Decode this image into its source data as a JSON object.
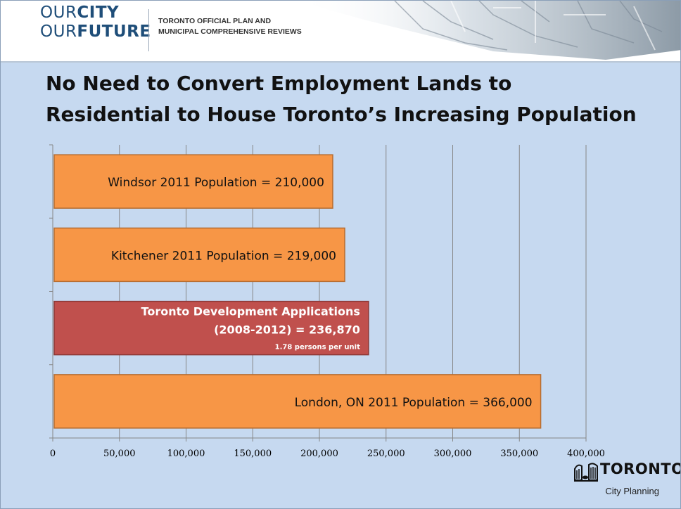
{
  "header": {
    "brand_line1_light": "OUR",
    "brand_line1_bold": "CITY",
    "brand_line2_light": "OUR",
    "brand_line2_bold": "FUTURE",
    "subtitle_line1": "TORONTO OFFICIAL PLAN AND",
    "subtitle_line2": "MUNICIPAL COMPREHENSIVE REVIEWS"
  },
  "slide": {
    "title_line1": "No Need to Convert Employment Lands to",
    "title_line2": "Residential to House Toronto’s Increasing Population"
  },
  "logo": {
    "wordmark": "TORONTO",
    "subtitle": "City Planning",
    "icon": "toronto-city-hall-icon"
  },
  "colors": {
    "background": "#c6d9f0",
    "bar_orange": "#f79646",
    "bar_orange_border": "#b66d31",
    "bar_red": "#c0504d",
    "bar_red_border": "#8c3836",
    "gridline": "#868686",
    "brand_blue": "#1f4e79"
  },
  "chart_data": {
    "type": "bar",
    "orientation": "horizontal",
    "xlim": [
      0,
      400000
    ],
    "x_ticks": [
      0,
      50000,
      100000,
      150000,
      200000,
      250000,
      300000,
      350000,
      400000
    ],
    "x_tick_labels": [
      "0",
      "50,000",
      "100,000",
      "150,000",
      "200,000",
      "250,000",
      "300,000",
      "350,000",
      "400,000"
    ],
    "grid": true,
    "legend": "none",
    "bars": [
      {
        "value": 210000,
        "label_lines": [
          "Windsor 2011 Population =  210,000"
        ],
        "color": "#f79646",
        "highlight": false
      },
      {
        "value": 219000,
        "label_lines": [
          "Kitchener 2011 Population =  219,000"
        ],
        "color": "#f79646",
        "highlight": false
      },
      {
        "value": 236870,
        "label_lines": [
          "Toronto Development Applications",
          "(2008-2012) =  236,870"
        ],
        "note": "1.78 persons per unit",
        "color": "#c0504d",
        "highlight": true
      },
      {
        "value": 366000,
        "label_lines": [
          "London, ON 2011 Population =  366,000"
        ],
        "color": "#f79646",
        "highlight": false
      }
    ]
  }
}
